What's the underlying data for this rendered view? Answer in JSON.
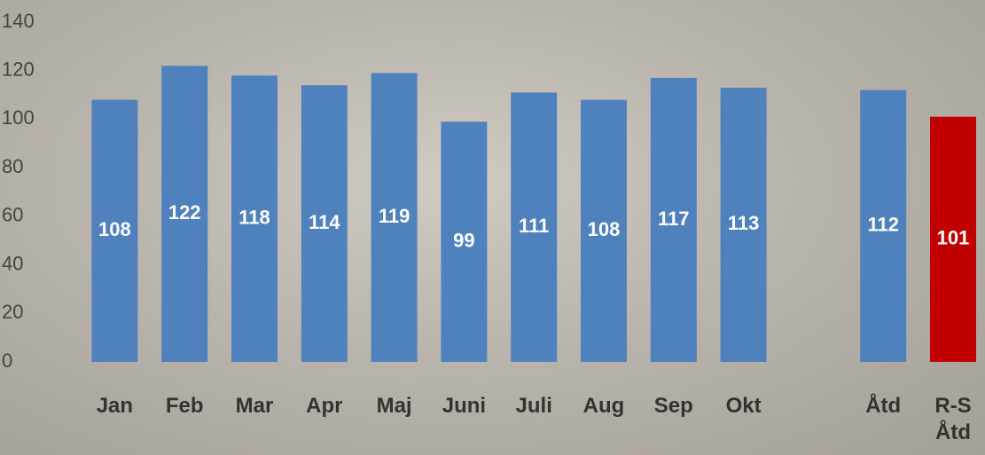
{
  "chart_data": {
    "type": "bar",
    "categories": [
      "Jan",
      "Feb",
      "Mar",
      "Apr",
      "Maj",
      "Juni",
      "Juli",
      "Aug",
      "Sep",
      "Okt",
      null,
      "Åtd",
      "R-S Åtd"
    ],
    "values": [
      108,
      122,
      118,
      114,
      119,
      99,
      111,
      108,
      117,
      113,
      null,
      112,
      101
    ],
    "colors": [
      "#4f81bd",
      "#4f81bd",
      "#4f81bd",
      "#4f81bd",
      "#4f81bd",
      "#4f81bd",
      "#4f81bd",
      "#4f81bd",
      "#4f81bd",
      "#4f81bd",
      "#4f81bd",
      "#4f81bd",
      "#c00000"
    ],
    "ylim": [
      0,
      140
    ],
    "yticks": [
      0,
      20,
      40,
      60,
      80,
      100,
      120,
      140
    ],
    "grid": false
  }
}
